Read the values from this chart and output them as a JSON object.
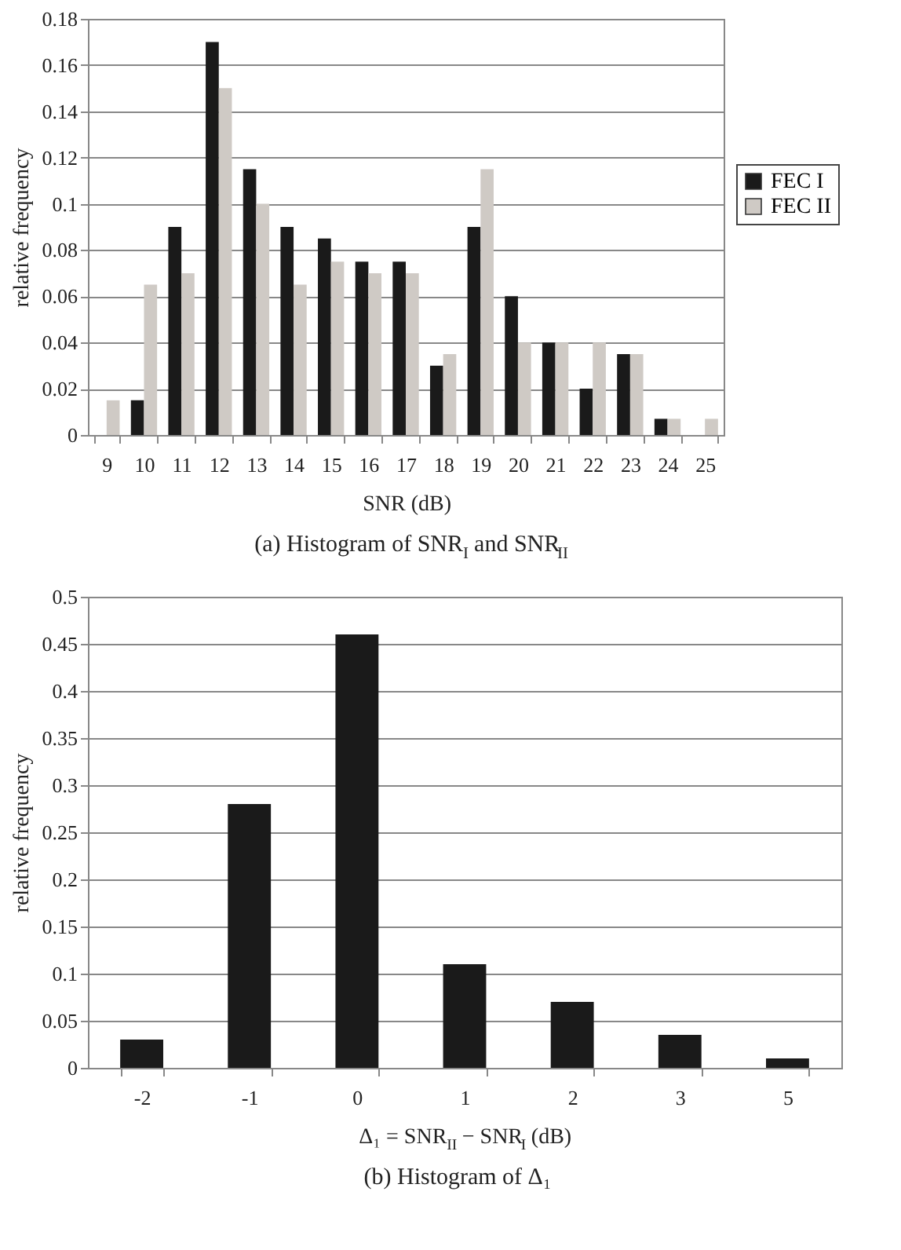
{
  "chart_data": [
    {
      "type": "bar",
      "title": "(a)    Histogram of SNR$_{I}$ and SNR$_{II}$",
      "xlabel": "SNR (dB)",
      "ylabel": "relative frequency",
      "categories": [
        "9",
        "10",
        "11",
        "12",
        "13",
        "14",
        "15",
        "16",
        "17",
        "18",
        "19",
        "20",
        "21",
        "22",
        "23",
        "24",
        "25"
      ],
      "series": [
        {
          "name": "FEC I",
          "color": "#1a1a1a",
          "values": [
            0,
            0.015,
            0.09,
            0.17,
            0.115,
            0.09,
            0.085,
            0.075,
            0.075,
            0.03,
            0.09,
            0.06,
            0.04,
            0.02,
            0.035,
            0.007,
            0
          ]
        },
        {
          "name": "FEC II",
          "color": "#cfcac5",
          "values": [
            0.015,
            0.065,
            0.07,
            0.15,
            0.1,
            0.065,
            0.075,
            0.07,
            0.07,
            0.035,
            0.115,
            0.04,
            0.04,
            0.04,
            0.035,
            0.007,
            0.007
          ]
        }
      ],
      "ylim": [
        0,
        0.18
      ],
      "yticks": [
        0,
        0.02,
        0.04,
        0.06,
        0.08,
        0.1,
        0.12,
        0.14,
        0.16,
        0.18
      ],
      "grid": "y",
      "legend": "right"
    },
    {
      "type": "bar",
      "title": "(b)    Histogram of Δ₁",
      "xlabel": "Δ₁ = SNR$_{II}$ − SNR$_{I}$ (dB)",
      "ylabel": "relative frequency",
      "categories": [
        "-2",
        "-1",
        "0",
        "1",
        "2",
        "3",
        "5"
      ],
      "values": [
        0.03,
        0.28,
        0.46,
        0.11,
        0.07,
        0.035,
        0.01
      ],
      "color": "#1a1a1a",
      "ylim": [
        0,
        0.5
      ],
      "yticks": [
        0,
        0.05,
        0.1,
        0.15,
        0.2,
        0.25,
        0.3,
        0.35,
        0.4,
        0.45,
        0.5
      ],
      "grid": "y"
    }
  ]
}
